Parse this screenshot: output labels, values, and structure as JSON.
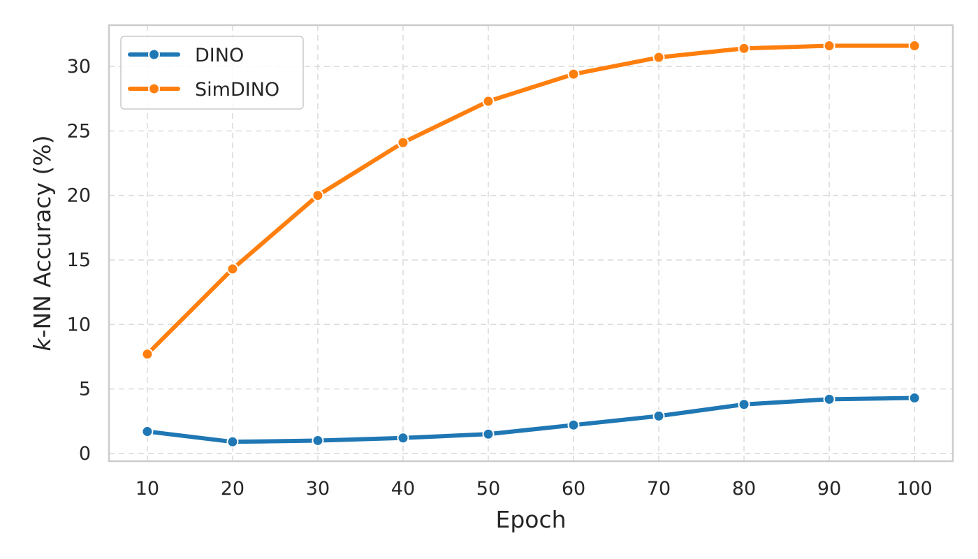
{
  "chart_data": {
    "type": "line",
    "x": [
      10,
      20,
      30,
      40,
      50,
      60,
      70,
      80,
      90,
      100
    ],
    "xticks": [
      "10",
      "20",
      "30",
      "40",
      "50",
      "60",
      "70",
      "80",
      "90",
      "100"
    ],
    "yticks": [
      "0",
      "5",
      "10",
      "15",
      "20",
      "25",
      "30"
    ],
    "series": [
      {
        "name": "DINO",
        "color": "#1f77b4",
        "values": [
          1.7,
          0.9,
          1.0,
          1.2,
          1.5,
          2.2,
          2.9,
          3.8,
          4.2,
          4.3
        ]
      },
      {
        "name": "SimDINO",
        "color": "#ff7f0e",
        "values": [
          7.7,
          14.3,
          20.0,
          24.1,
          27.3,
          29.4,
          30.7,
          31.4,
          31.6,
          31.6
        ]
      }
    ],
    "xlabel": "Epoch",
    "ylabel_prefix": "k",
    "ylabel_suffix": "-NN Accuracy (%)",
    "xlim": [
      5.5,
      104.5
    ],
    "ylim": [
      -0.6,
      33.2
    ],
    "grid": true,
    "legend_position": "top-left"
  }
}
